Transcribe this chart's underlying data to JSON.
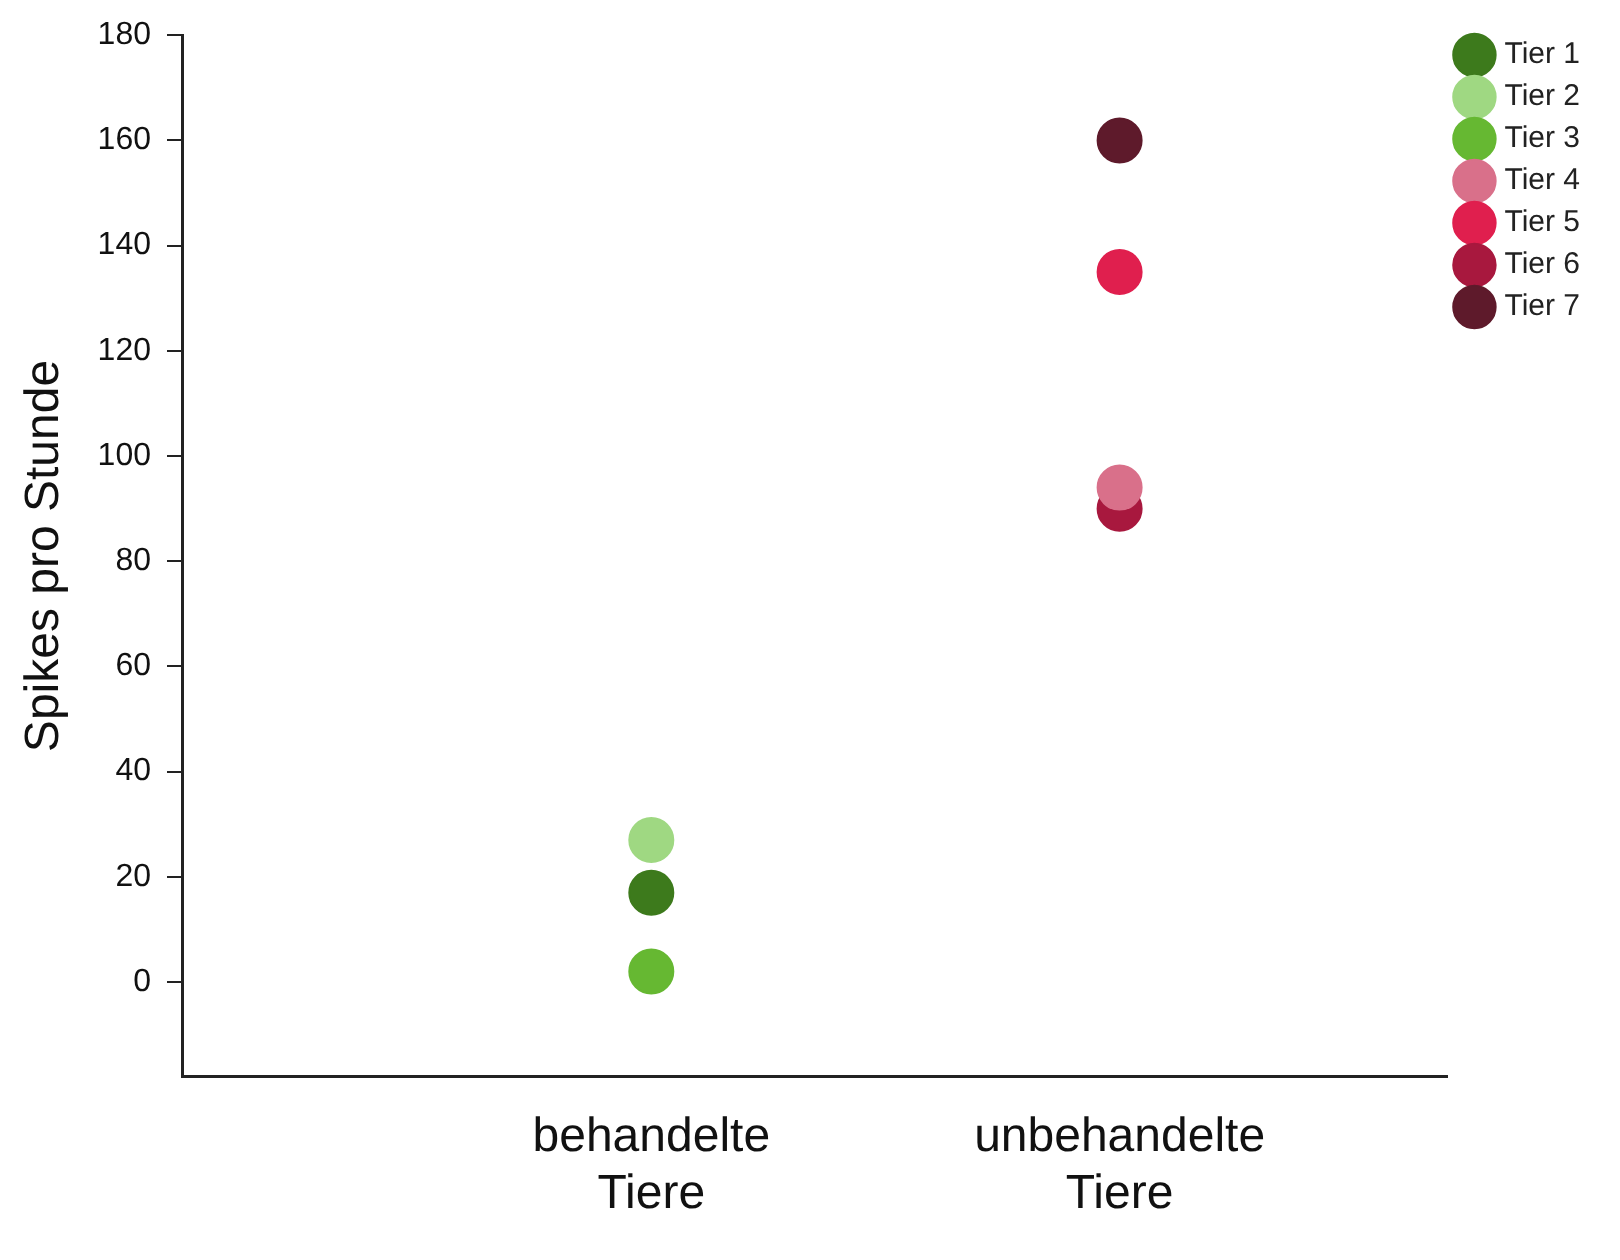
{
  "chart_data": {
    "type": "scatter",
    "ylabel": "Spikes pro Stunde",
    "categories": [
      "behandelte Tiere",
      "unbehandelte Tiere"
    ],
    "series": [
      {
        "name": "Tier 1",
        "color": "#3d7a1c",
        "values": [
          17,
          null
        ]
      },
      {
        "name": "Tier 2",
        "color": "#9fd882",
        "values": [
          27,
          null
        ]
      },
      {
        "name": "Tier 3",
        "color": "#66b832",
        "values": [
          2,
          null
        ]
      },
      {
        "name": "Tier 4",
        "color": "#d9708a",
        "values": [
          null,
          94
        ]
      },
      {
        "name": "Tier 5",
        "color": "#e01f4e",
        "values": [
          null,
          135
        ]
      },
      {
        "name": "Tier 6",
        "color": "#a8183e",
        "values": [
          null,
          90
        ]
      },
      {
        "name": "Tier 7",
        "color": "#5e1a2b",
        "values": [
          null,
          160
        ]
      }
    ],
    "ylim": [
      -18,
      180
    ],
    "yticks": [
      0,
      20,
      40,
      60,
      80,
      100,
      120,
      140,
      160,
      180
    ],
    "grid": false,
    "legend": "right",
    "marker": "circle"
  }
}
